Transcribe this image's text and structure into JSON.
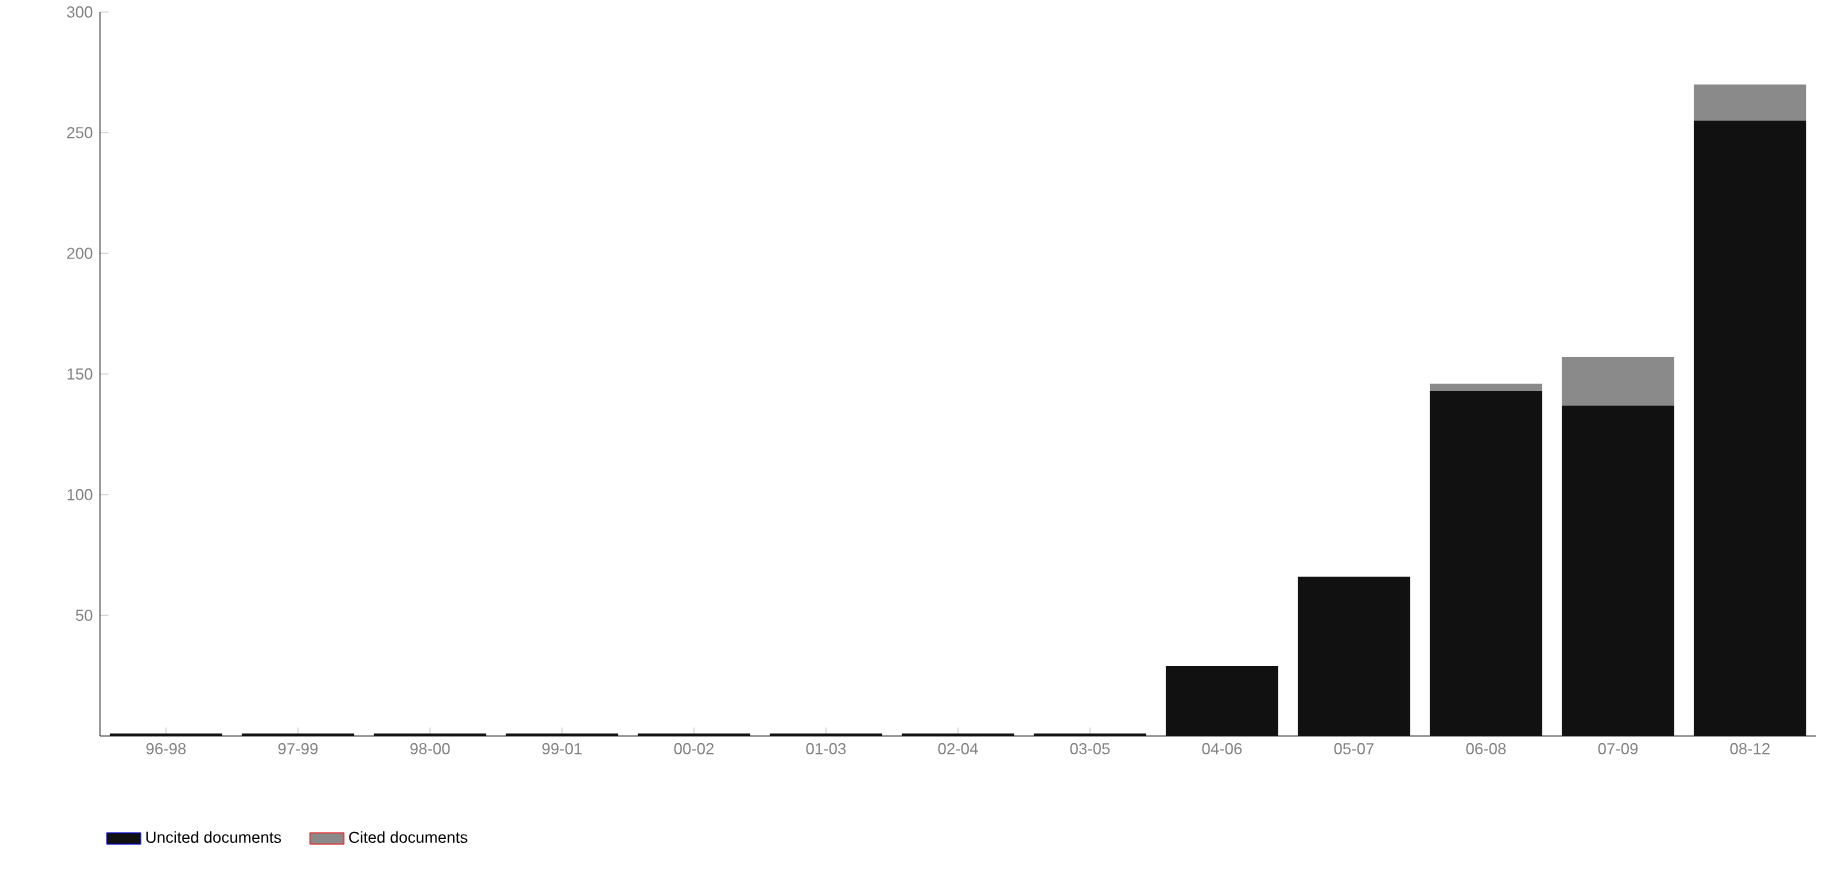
{
  "chart_data": {
    "type": "bar",
    "stacked": true,
    "categories": [
      "96-98",
      "97-99",
      "98-00",
      "99-01",
      "00-02",
      "01-03",
      "02-04",
      "03-05",
      "04-06",
      "05-07",
      "06-08",
      "07-09",
      "08-12"
    ],
    "series": [
      {
        "name": "Uncited documents",
        "color": "#111111",
        "values": [
          1,
          1,
          1,
          1,
          1,
          1,
          1,
          1,
          29,
          66,
          143,
          137,
          255
        ]
      },
      {
        "name": "Cited documents",
        "color": "#8a8a8a",
        "values": [
          0,
          0,
          0,
          0,
          0,
          0,
          0,
          0,
          0,
          0,
          3,
          20,
          15
        ]
      }
    ],
    "ylim": [
      0,
      300
    ],
    "yticks": [
      50,
      100,
      150,
      200,
      250,
      300
    ],
    "grid": false,
    "legend": "bottom left"
  }
}
